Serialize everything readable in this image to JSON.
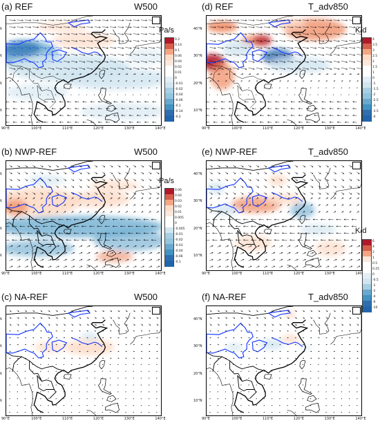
{
  "panels": [
    {
      "id": "a",
      "title": "(a) REF",
      "var": "W500",
      "field": "w_ref",
      "vec": "ref"
    },
    {
      "id": "b",
      "title": "(b) NWP-REF",
      "var": "W500",
      "field": "w_nwp",
      "vec": "diff"
    },
    {
      "id": "c",
      "title": "(c) NA-REF",
      "var": "W500",
      "field": "w_na",
      "vec": "diffsmall"
    },
    {
      "id": "d",
      "title": "(d) REF",
      "var": "T_adv850",
      "field": "t_ref",
      "vec": "ref"
    },
    {
      "id": "e",
      "title": "(e) NWP-REF",
      "var": "T_adv850",
      "field": "t_nwp",
      "vec": "diff"
    },
    {
      "id": "f",
      "title": "(f) NA-REF",
      "var": "T_adv850",
      "field": "t_na",
      "vec": "diffsmall"
    }
  ],
  "lat_labels": [
    "40°N",
    "30°N",
    "20°N",
    "10°N"
  ],
  "lon_labels": [
    "90°E",
    "100°E",
    "110°E",
    "120°E",
    "130°E",
    "140°E"
  ],
  "colorbars": [
    {
      "id": "cb_a",
      "unit": "Pa/s",
      "ticks": [
        "0.2",
        "0.14",
        "0.1",
        "0.06",
        "0.04",
        "0.02",
        "0.01",
        "0",
        "-0.01",
        "-0.02",
        "-0.04",
        "-0.06",
        "-0.1",
        "-0.14",
        "-0.2"
      ]
    },
    {
      "id": "cb_b",
      "unit": "Pa/s",
      "ticks": [
        "0.06",
        "0.04",
        "0.03",
        "0.02",
        "0.01",
        "0.005",
        "0",
        "-0.005",
        "-0.01",
        "-0.02",
        "-0.03",
        "-0.04",
        "-0.06",
        "-0.1"
      ]
    },
    {
      "id": "cb_d",
      "unit": "K/d",
      "ticks": [
        "4",
        "3.5",
        "3",
        "2.5",
        "2",
        "1.5",
        "1",
        "0",
        "-1",
        "-1.5",
        "-2",
        "-2.5",
        "-3",
        "-3.5",
        "-4"
      ]
    },
    {
      "id": "cb_e",
      "unit": "K/d",
      "ticks": [
        "6",
        "4",
        "2",
        "1",
        "0.5",
        "0.25",
        "0",
        "-0.5",
        "-1",
        "-2",
        "-4",
        "-6",
        "-10"
      ]
    }
  ],
  "colors": {
    "red_strong": "#b2182b",
    "red_mid": "#ef8a62",
    "red_light": "#fddbc7",
    "white": "#ffffff",
    "blue_light": "#d1e5f0",
    "blue_mid": "#67a9cf",
    "blue_strong": "#2166ac",
    "river": "#1f3fff"
  }
}
